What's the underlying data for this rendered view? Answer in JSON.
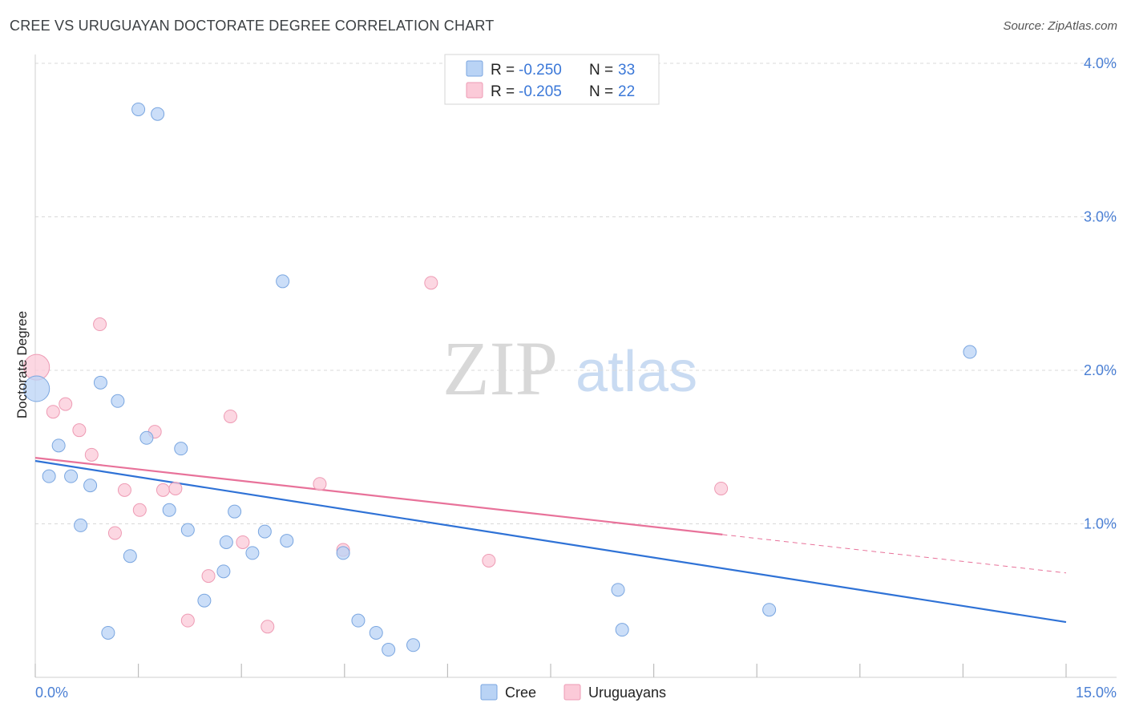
{
  "header": {
    "title": "CREE VS URUGUAYAN DOCTORATE DEGREE CORRELATION CHART",
    "source": "Source: ZipAtlas.com"
  },
  "watermark": {
    "zip": "ZIP",
    "atlas": "atlas"
  },
  "colors": {
    "cree_fill": "#b9d3f5",
    "cree_stroke": "#7aa6e0",
    "cree_line": "#2f72d6",
    "uru_fill": "#fbcad8",
    "uru_stroke": "#ee9bb4",
    "uru_line": "#e8729a",
    "tick_text": "#4a7fd4",
    "grid": "#d9d9d9"
  },
  "legend": {
    "rows": [
      {
        "r_label": "R = ",
        "r_value": "-0.250",
        "n_label": "N = ",
        "n_value": "33"
      },
      {
        "r_label": "R = ",
        "r_value": "-0.205",
        "n_label": "N = ",
        "n_value": "22"
      }
    ]
  },
  "bottom_legend": {
    "cree": "Cree",
    "uruguayans": "Uruguayans"
  },
  "chart_data": {
    "type": "scatter",
    "title": "CREE VS URUGUAYAN DOCTORATE DEGREE CORRELATION CHART",
    "xlabel": "",
    "ylabel": "Doctorate Degree",
    "xlim": [
      0,
      15
    ],
    "ylim": [
      0,
      4.0
    ],
    "x_tick_labels": {
      "min": "0.0%",
      "max": "15.0%"
    },
    "y_ticks": [
      {
        "value": 1.0,
        "label": "1.0%"
      },
      {
        "value": 2.0,
        "label": "2.0%"
      },
      {
        "value": 3.0,
        "label": "3.0%"
      },
      {
        "value": 4.0,
        "label": "4.0%"
      }
    ],
    "grid": true,
    "series": [
      {
        "name": "Cree",
        "r": -0.25,
        "n": 33,
        "trend": {
          "x0": 0,
          "y0": 1.41,
          "x1": 15,
          "y1": 0.36,
          "dashed_from": null
        },
        "points": [
          {
            "x": 1.5,
            "y": 3.7
          },
          {
            "x": 1.78,
            "y": 3.67
          },
          {
            "x": 3.6,
            "y": 2.58
          },
          {
            "x": 13.6,
            "y": 2.12
          },
          {
            "x": 0.02,
            "y": 1.88,
            "big": true
          },
          {
            "x": 0.95,
            "y": 1.92
          },
          {
            "x": 1.2,
            "y": 1.8
          },
          {
            "x": 1.62,
            "y": 1.56
          },
          {
            "x": 2.12,
            "y": 1.49
          },
          {
            "x": 0.34,
            "y": 1.51
          },
          {
            "x": 0.2,
            "y": 1.31
          },
          {
            "x": 0.52,
            "y": 1.31
          },
          {
            "x": 0.8,
            "y": 1.25
          },
          {
            "x": 1.95,
            "y": 1.09
          },
          {
            "x": 2.9,
            "y": 1.08
          },
          {
            "x": 0.66,
            "y": 0.99
          },
          {
            "x": 2.22,
            "y": 0.96
          },
          {
            "x": 3.34,
            "y": 0.95
          },
          {
            "x": 2.78,
            "y": 0.88
          },
          {
            "x": 3.66,
            "y": 0.89
          },
          {
            "x": 3.16,
            "y": 0.81
          },
          {
            "x": 1.38,
            "y": 0.79
          },
          {
            "x": 4.48,
            "y": 0.81
          },
          {
            "x": 2.74,
            "y": 0.69
          },
          {
            "x": 8.48,
            "y": 0.57
          },
          {
            "x": 2.46,
            "y": 0.5
          },
          {
            "x": 10.68,
            "y": 0.44
          },
          {
            "x": 4.7,
            "y": 0.37
          },
          {
            "x": 1.06,
            "y": 0.29
          },
          {
            "x": 4.96,
            "y": 0.29
          },
          {
            "x": 8.54,
            "y": 0.31
          },
          {
            "x": 5.5,
            "y": 0.21
          },
          {
            "x": 5.14,
            "y": 0.18
          }
        ]
      },
      {
        "name": "Uruguayans",
        "r": -0.205,
        "n": 22,
        "trend": {
          "x0": 0,
          "y0": 1.43,
          "x1": 15,
          "y1": 0.68,
          "dashed_from": 10.0
        },
        "points": [
          {
            "x": 0.02,
            "y": 2.02,
            "big": true
          },
          {
            "x": 5.76,
            "y": 2.57
          },
          {
            "x": 0.94,
            "y": 2.3
          },
          {
            "x": 0.44,
            "y": 1.78
          },
          {
            "x": 0.26,
            "y": 1.73
          },
          {
            "x": 2.84,
            "y": 1.7
          },
          {
            "x": 0.64,
            "y": 1.61
          },
          {
            "x": 1.74,
            "y": 1.6
          },
          {
            "x": 0.82,
            "y": 1.45
          },
          {
            "x": 4.14,
            "y": 1.26
          },
          {
            "x": 1.3,
            "y": 1.22
          },
          {
            "x": 1.86,
            "y": 1.22
          },
          {
            "x": 2.04,
            "y": 1.23
          },
          {
            "x": 9.98,
            "y": 1.23
          },
          {
            "x": 1.52,
            "y": 1.09
          },
          {
            "x": 1.16,
            "y": 0.94
          },
          {
            "x": 3.02,
            "y": 0.88
          },
          {
            "x": 4.48,
            "y": 0.83
          },
          {
            "x": 6.6,
            "y": 0.76
          },
          {
            "x": 2.52,
            "y": 0.66
          },
          {
            "x": 2.22,
            "y": 0.37
          },
          {
            "x": 3.38,
            "y": 0.33
          }
        ]
      }
    ]
  }
}
